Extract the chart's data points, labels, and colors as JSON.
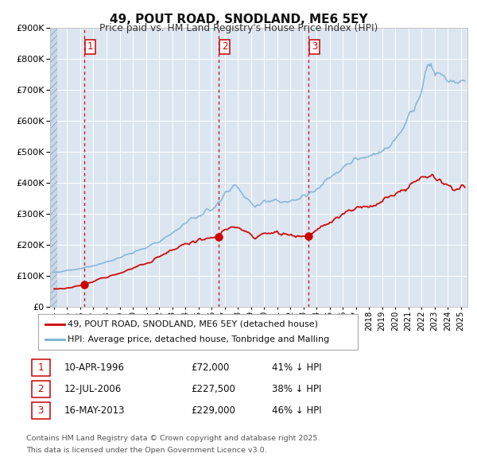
{
  "title": "49, POUT ROAD, SNODLAND, ME6 5EY",
  "subtitle": "Price paid vs. HM Land Registry's House Price Index (HPI)",
  "legend_line1": "49, POUT ROAD, SNODLAND, ME6 5EY (detached house)",
  "legend_line2": "HPI: Average price, detached house, Tonbridge and Malling",
  "transactions": [
    {
      "num": 1,
      "date": "10-APR-1996",
      "price": 72000,
      "year": 1996.28,
      "pct": "41%"
    },
    {
      "num": 2,
      "date": "12-JUL-2006",
      "price": 227500,
      "year": 2006.53,
      "pct": "38%"
    },
    {
      "num": 3,
      "date": "16-MAY-2013",
      "price": 229000,
      "year": 2013.37,
      "pct": "46%"
    }
  ],
  "footnote1": "Contains HM Land Registry data © Crown copyright and database right 2025.",
  "footnote2": "This data is licensed under the Open Government Licence v3.0.",
  "red_line_color": "#cc0000",
  "blue_line_color": "#7bafd4",
  "background_color": "#ffffff",
  "plot_bg_color": "#dce6f1",
  "grid_color": "#ffffff",
  "vline_color": "#cc0000",
  "marker_color": "#cc0000",
  "ylim": [
    0,
    900000
  ],
  "xlim_start": 1993.7,
  "xlim_end": 2025.5,
  "hatch_end": 1994.25
}
